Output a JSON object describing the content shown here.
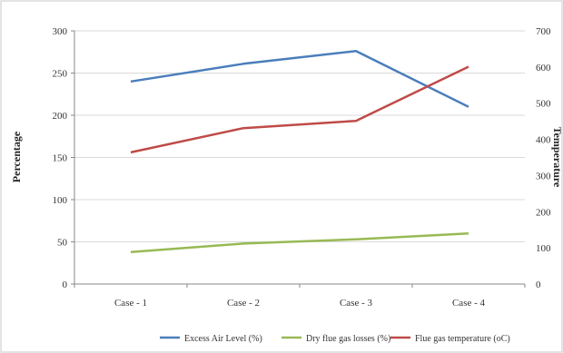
{
  "chart_data": {
    "type": "line",
    "categories": [
      "Case - 1",
      "Case - 2",
      "Case - 3",
      "Case - 4"
    ],
    "y_left": {
      "label": "Percentage",
      "min": 0,
      "max": 300,
      "step": 50
    },
    "y_right": {
      "label": "Temperature",
      "min": 0,
      "max": 700,
      "step": 100
    },
    "series": [
      {
        "name": "Excess Air Level (%)",
        "axis": "left",
        "color": "#4a7ebb",
        "values": [
          240,
          261,
          276,
          210
        ]
      },
      {
        "name": "Dry flue gas losses (%)",
        "axis": "left",
        "color": "#98b954",
        "values": [
          38,
          48,
          53,
          60
        ]
      },
      {
        "name": "Flue gas temperature (oC)",
        "axis": "right",
        "color": "#be4b48",
        "values": [
          364,
          431,
          451,
          601
        ]
      }
    ],
    "grid": "horizontal",
    "legend": "bottom"
  }
}
